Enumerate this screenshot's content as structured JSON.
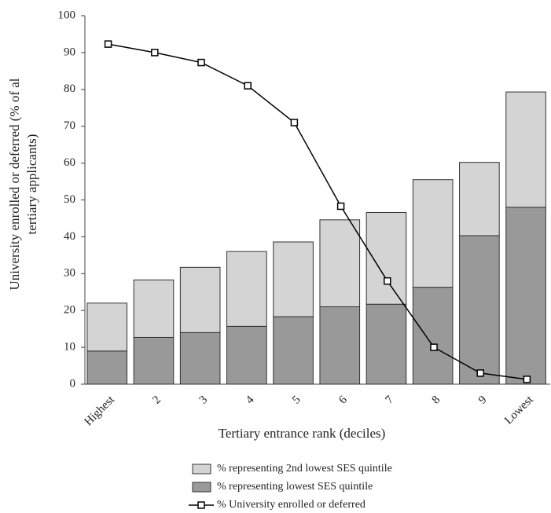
{
  "chart_data": {
    "type": "bar",
    "stacked": true,
    "x_label": "Tertiary entrance rank (deciles)",
    "y_label": [
      "University enrolled or deferred (% of al",
      "tertiary applicants)"
    ],
    "categories": [
      "Highest",
      "2",
      "3",
      "4",
      "5",
      "6",
      "7",
      "8",
      "9",
      "Lowest"
    ],
    "series": [
      {
        "name": "% representing lowest SES quintile",
        "type": "bar",
        "color": "#999999",
        "values": [
          9,
          12.7,
          14,
          15.7,
          18.3,
          21,
          21.7,
          26.3,
          40.3,
          48
        ]
      },
      {
        "name": "% representing 2nd lowest SES quintile",
        "type": "bar",
        "color": "#d4d4d4",
        "values": [
          13,
          15.6,
          17.7,
          20.3,
          20.3,
          23.6,
          24.9,
          29.2,
          19.9,
          31.3
        ]
      },
      {
        "name": "% University enrolled or deferred",
        "type": "line",
        "color": "#000000",
        "values": [
          92.3,
          90,
          87.3,
          81,
          71,
          48.3,
          28,
          10,
          3,
          1.3
        ]
      }
    ],
    "legend_order": [
      1,
      0,
      2
    ],
    "ylim": [
      0,
      100
    ],
    "yticks": [
      0,
      10,
      20,
      30,
      40,
      50,
      60,
      70,
      80,
      90,
      100
    ]
  }
}
